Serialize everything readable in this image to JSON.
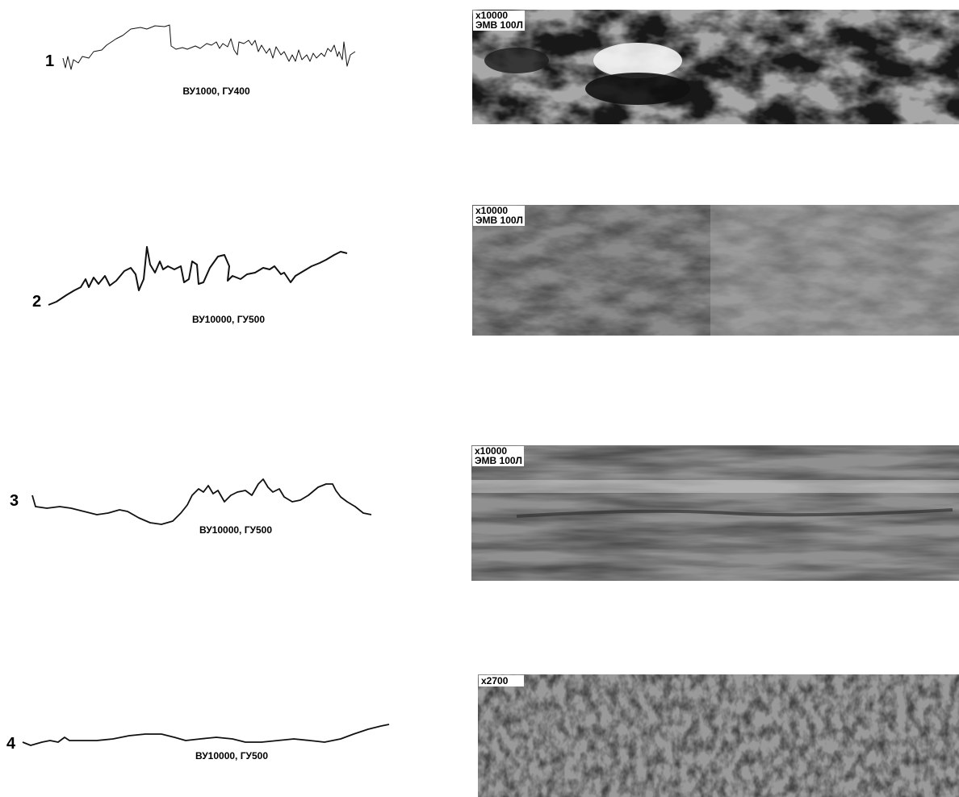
{
  "rows": [
    {
      "number": "1",
      "profile_label": "ВУ1000, ГУ400",
      "image_labels": [
        "x10000",
        "ЭМВ 100Л"
      ]
    },
    {
      "number": "2",
      "profile_label": "ВУ10000, ГУ500",
      "image_labels": [
        "x10000",
        "ЭМВ 100Л"
      ]
    },
    {
      "number": "3",
      "profile_label": "ВУ10000, ГУ500",
      "image_labels": [
        "x10000",
        "ЭМВ 100Л"
      ]
    },
    {
      "number": "4",
      "profile_label": "ВУ10000, ГУ500",
      "image_labels": [
        "x2700"
      ]
    }
  ]
}
